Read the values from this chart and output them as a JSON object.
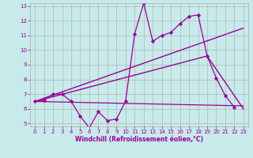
{
  "xlabel": "Windchill (Refroidissement éolien,°C)",
  "background_color": "#c8eaea",
  "line_color": "#990099",
  "grid_color": "#aaaaaa",
  "xlim": [
    -0.5,
    23.5
  ],
  "ylim": [
    4.8,
    13.2
  ],
  "yticks": [
    5,
    6,
    7,
    8,
    9,
    10,
    11,
    12,
    13
  ],
  "xticks": [
    0,
    1,
    2,
    3,
    4,
    5,
    6,
    7,
    8,
    9,
    10,
    11,
    12,
    13,
    14,
    15,
    16,
    17,
    18,
    19,
    20,
    21,
    22,
    23
  ],
  "tick_fontsize": 5.0,
  "xlabel_fontsize": 5.5,
  "series": [
    {
      "x": [
        0,
        1,
        2,
        3,
        4,
        5,
        6,
        7,
        8,
        9,
        10,
        11,
        12,
        13,
        14,
        15,
        16,
        17,
        18,
        19,
        20,
        21,
        22
      ],
      "y": [
        6.5,
        6.6,
        7.0,
        7.0,
        6.5,
        5.5,
        4.7,
        5.8,
        5.2,
        5.3,
        6.5,
        11.1,
        13.2,
        10.6,
        11.0,
        11.2,
        11.8,
        12.3,
        12.4,
        9.6,
        8.1,
        6.9,
        6.1
      ],
      "marker": "D",
      "markersize": 2.2,
      "linewidth": 0.9,
      "linestyle": "-"
    },
    {
      "x": [
        0,
        23
      ],
      "y": [
        6.5,
        11.5
      ],
      "marker": null,
      "markersize": 0,
      "linewidth": 1.0,
      "linestyle": "-"
    },
    {
      "x": [
        0,
        19,
        23
      ],
      "y": [
        6.5,
        9.6,
        6.0
      ],
      "marker": null,
      "markersize": 0,
      "linewidth": 1.0,
      "linestyle": "-"
    },
    {
      "x": [
        0,
        23
      ],
      "y": [
        6.5,
        6.2
      ],
      "marker": null,
      "markersize": 0,
      "linewidth": 0.9,
      "linestyle": "-"
    }
  ]
}
